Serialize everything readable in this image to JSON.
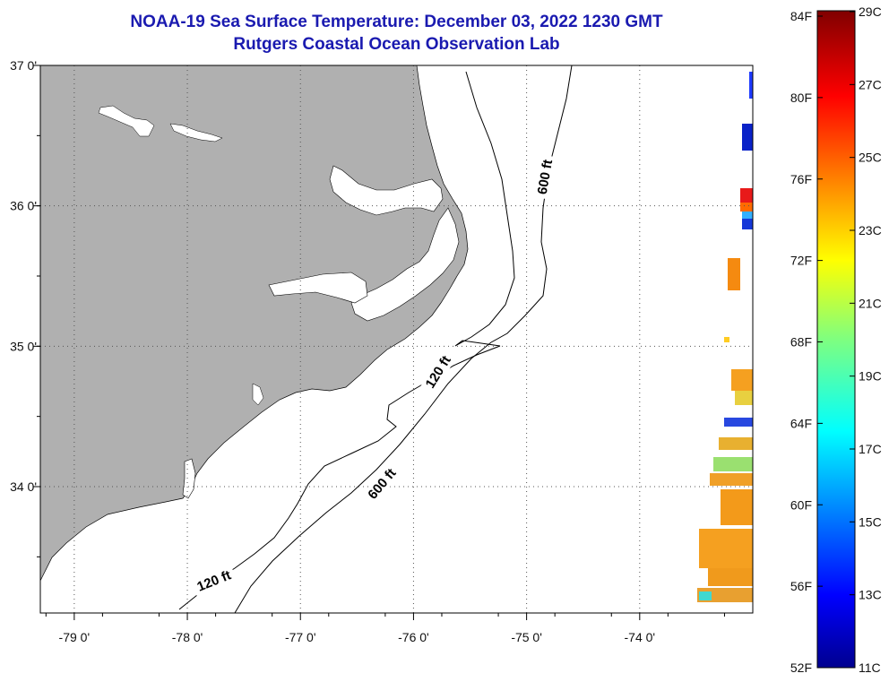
{
  "header": {
    "title": "NOAA-19 Sea Surface Temperature:  December 03, 2022 1230 GMT",
    "subtitle": "Rutgers Coastal Ocean Observation Lab"
  },
  "map": {
    "lon_range": [
      -79.3,
      -73.0
    ],
    "lat_range": [
      33.1,
      37.0
    ],
    "lon_ticks": [
      {
        "value": -79,
        "label": "-79 0'"
      },
      {
        "value": -78,
        "label": "-78 0'"
      },
      {
        "value": -77,
        "label": "-77 0'"
      },
      {
        "value": -76,
        "label": "-76 0'"
      },
      {
        "value": -75,
        "label": "-75 0'"
      },
      {
        "value": -74,
        "label": "-74 0'"
      }
    ],
    "lat_ticks": [
      {
        "value": 37,
        "label": "37 0'"
      },
      {
        "value": 36,
        "label": "36 0'"
      },
      {
        "value": 35,
        "label": "35 0'"
      },
      {
        "value": 34,
        "label": "34 0'"
      }
    ],
    "contour_labels": [
      {
        "text": "600 ft",
        "lon": -74.8,
        "lat": 36.2
      },
      {
        "text": "120 ft",
        "lon": -75.75,
        "lat": 34.8
      },
      {
        "text": "600 ft",
        "lon": -76.25,
        "lat": 34.0
      },
      {
        "text": "120 ft",
        "lon": -77.75,
        "lat": 33.3
      }
    ],
    "colors": {
      "land": "#b0b0b0",
      "ocean": "#ffffff",
      "water_inland": "#ffffff",
      "grid": "#555555"
    }
  },
  "colorbar": {
    "fahrenheit_labels": [
      "84F",
      "80F",
      "76F",
      "72F",
      "68F",
      "64F",
      "60F",
      "56F",
      "52F"
    ],
    "celsius_labels": [
      "29C",
      "27C",
      "25C",
      "23C",
      "21C",
      "19C",
      "17C",
      "15C",
      "13C",
      "11C"
    ],
    "range_c": [
      11,
      29
    ],
    "colormap": "jet"
  }
}
